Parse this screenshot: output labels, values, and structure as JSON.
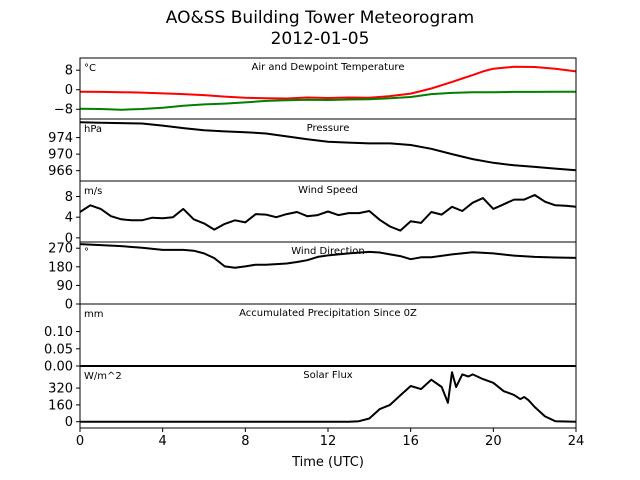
{
  "figure": {
    "title_line1": "AO&SS Building Tower Meteorogram",
    "title_line2": "2012-01-05",
    "xlabel": "Time (UTC)",
    "xticks": [
      0,
      4,
      8,
      12,
      16,
      20,
      24
    ],
    "xlim": [
      0,
      24
    ]
  },
  "chart_data": [
    {
      "type": "line",
      "title": "Air and Dewpoint Temperature",
      "unit_label": "°C",
      "ylim": [
        -12,
        13
      ],
      "yticks": [
        -8,
        0,
        8
      ],
      "series": [
        {
          "color": "#ff0000",
          "x": [
            0,
            1,
            2,
            3,
            4,
            5,
            6,
            7,
            8,
            9,
            10,
            11,
            12,
            13,
            14,
            15,
            16,
            17,
            18,
            18.5,
            19,
            19.5,
            20,
            21,
            22,
            23,
            24
          ],
          "y": [
            -0.8,
            -0.9,
            -1.0,
            -1.2,
            -1.5,
            -1.8,
            -2.2,
            -2.8,
            -3.3,
            -3.5,
            -3.6,
            -3.2,
            -3.4,
            -3.2,
            -3.3,
            -2.6,
            -1.6,
            0.5,
            3.2,
            4.6,
            6.0,
            7.5,
            8.6,
            9.4,
            9.3,
            8.6,
            7.5
          ]
        },
        {
          "color": "#008000",
          "x": [
            0,
            1,
            2,
            3,
            4,
            5,
            6,
            7,
            8,
            9,
            10,
            11,
            12,
            13,
            14,
            15,
            16,
            17,
            18,
            19,
            20,
            21,
            22,
            23,
            24
          ],
          "y": [
            -7.8,
            -7.9,
            -8.2,
            -7.9,
            -7.4,
            -6.6,
            -6.0,
            -5.7,
            -5.2,
            -4.6,
            -4.3,
            -4.1,
            -4.2,
            -4.0,
            -3.9,
            -3.5,
            -3.0,
            -1.8,
            -1.3,
            -1.0,
            -1.0,
            -0.9,
            -0.9,
            -0.8,
            -0.8
          ]
        }
      ]
    },
    {
      "type": "line",
      "title": "Pressure",
      "unit_label": "hPa",
      "ylim": [
        963.5,
        978.5
      ],
      "yticks": [
        966,
        970,
        974
      ],
      "series": [
        {
          "color": "#000000",
          "x": [
            0,
            1,
            2,
            3,
            4,
            5,
            6,
            7,
            8,
            9,
            10,
            11,
            12,
            13,
            14,
            15,
            16,
            17,
            18,
            19,
            20,
            21,
            22,
            23,
            24
          ],
          "y": [
            977.7,
            977.6,
            977.5,
            977.4,
            976.9,
            976.3,
            975.8,
            975.5,
            975.3,
            975.0,
            974.3,
            973.6,
            973.0,
            972.8,
            972.6,
            972.6,
            972.2,
            971.3,
            970.0,
            968.8,
            967.9,
            967.3,
            966.9,
            966.5,
            966.1
          ]
        }
      ]
    },
    {
      "type": "line",
      "title": "Wind Speed",
      "unit_label": "m/s",
      "ylim": [
        -0.8,
        11
      ],
      "yticks": [
        0,
        4,
        8
      ],
      "series": [
        {
          "color": "#000000",
          "x": [
            0,
            0.5,
            1,
            1.5,
            2,
            2.5,
            3,
            3.5,
            4,
            4.5,
            5,
            5.5,
            6,
            6.5,
            7,
            7.5,
            8,
            8.5,
            9,
            9.5,
            10,
            10.5,
            11,
            11.5,
            12,
            12.5,
            13,
            13.5,
            14,
            14.5,
            15,
            15.5,
            16,
            16.5,
            17,
            17.5,
            18,
            18.5,
            19,
            19.5,
            20,
            20.5,
            21,
            21.5,
            22,
            22.5,
            23,
            23.5,
            24
          ],
          "y": [
            5.0,
            6.3,
            5.6,
            4.2,
            3.6,
            3.4,
            3.4,
            3.9,
            3.8,
            4.0,
            5.6,
            3.6,
            2.8,
            1.6,
            2.7,
            3.4,
            3.0,
            4.6,
            4.5,
            4.0,
            4.6,
            5.0,
            4.2,
            4.4,
            5.1,
            4.4,
            4.8,
            4.8,
            5.2,
            3.5,
            2.2,
            1.4,
            3.2,
            2.9,
            5.0,
            4.5,
            6.0,
            5.2,
            6.8,
            7.7,
            5.6,
            6.5,
            7.4,
            7.4,
            8.3,
            7.0,
            6.3,
            6.2,
            6.0
          ]
        }
      ]
    },
    {
      "type": "line",
      "title": "Wind Direction",
      "unit_label": "°",
      "ylim": [
        0,
        300
      ],
      "yticks": [
        0,
        90,
        180,
        270
      ],
      "series": [
        {
          "color": "#000000",
          "x": [
            0,
            1,
            2,
            3,
            4,
            5,
            5.5,
            6,
            6.5,
            7,
            7.5,
            8,
            8.5,
            9,
            9.5,
            10,
            10.5,
            11,
            11.5,
            12,
            13,
            14,
            14.5,
            15,
            15.5,
            16,
            16.5,
            17,
            18,
            19,
            20,
            21,
            22,
            23,
            24
          ],
          "y": [
            290,
            285,
            280,
            272,
            262,
            262,
            258,
            245,
            222,
            182,
            175,
            182,
            190,
            190,
            193,
            196,
            203,
            212,
            228,
            235,
            245,
            252,
            249,
            240,
            232,
            217,
            226,
            226,
            240,
            250,
            245,
            234,
            228,
            225,
            223
          ]
        }
      ]
    },
    {
      "type": "line",
      "title": "Accumulated Precipitation Since 0Z",
      "unit_label": "mm",
      "ylim": [
        0,
        0.18
      ],
      "yticks": [
        0.0,
        0.05,
        0.1
      ],
      "series": [
        {
          "color": "#000000",
          "x": [
            0,
            24
          ],
          "y": [
            0,
            0
          ]
        }
      ]
    },
    {
      "type": "line",
      "title": "Solar Flux",
      "unit_label": "W/m^2",
      "ylim": [
        -60,
        530
      ],
      "yticks": [
        0,
        160,
        320
      ],
      "series": [
        {
          "color": "#000000",
          "x": [
            0,
            13,
            13.5,
            14,
            14.5,
            15,
            15.5,
            16,
            16.5,
            17,
            17.5,
            17.8,
            18,
            18.2,
            18.5,
            18.8,
            19,
            19.5,
            20,
            20.5,
            21,
            21.3,
            21.5,
            21.7,
            22,
            22.5,
            23,
            24
          ],
          "y": [
            0,
            0,
            5,
            30,
            120,
            160,
            250,
            340,
            310,
            400,
            330,
            180,
            470,
            330,
            450,
            430,
            450,
            405,
            370,
            290,
            255,
            215,
            235,
            205,
            140,
            50,
            5,
            0
          ]
        }
      ]
    }
  ]
}
